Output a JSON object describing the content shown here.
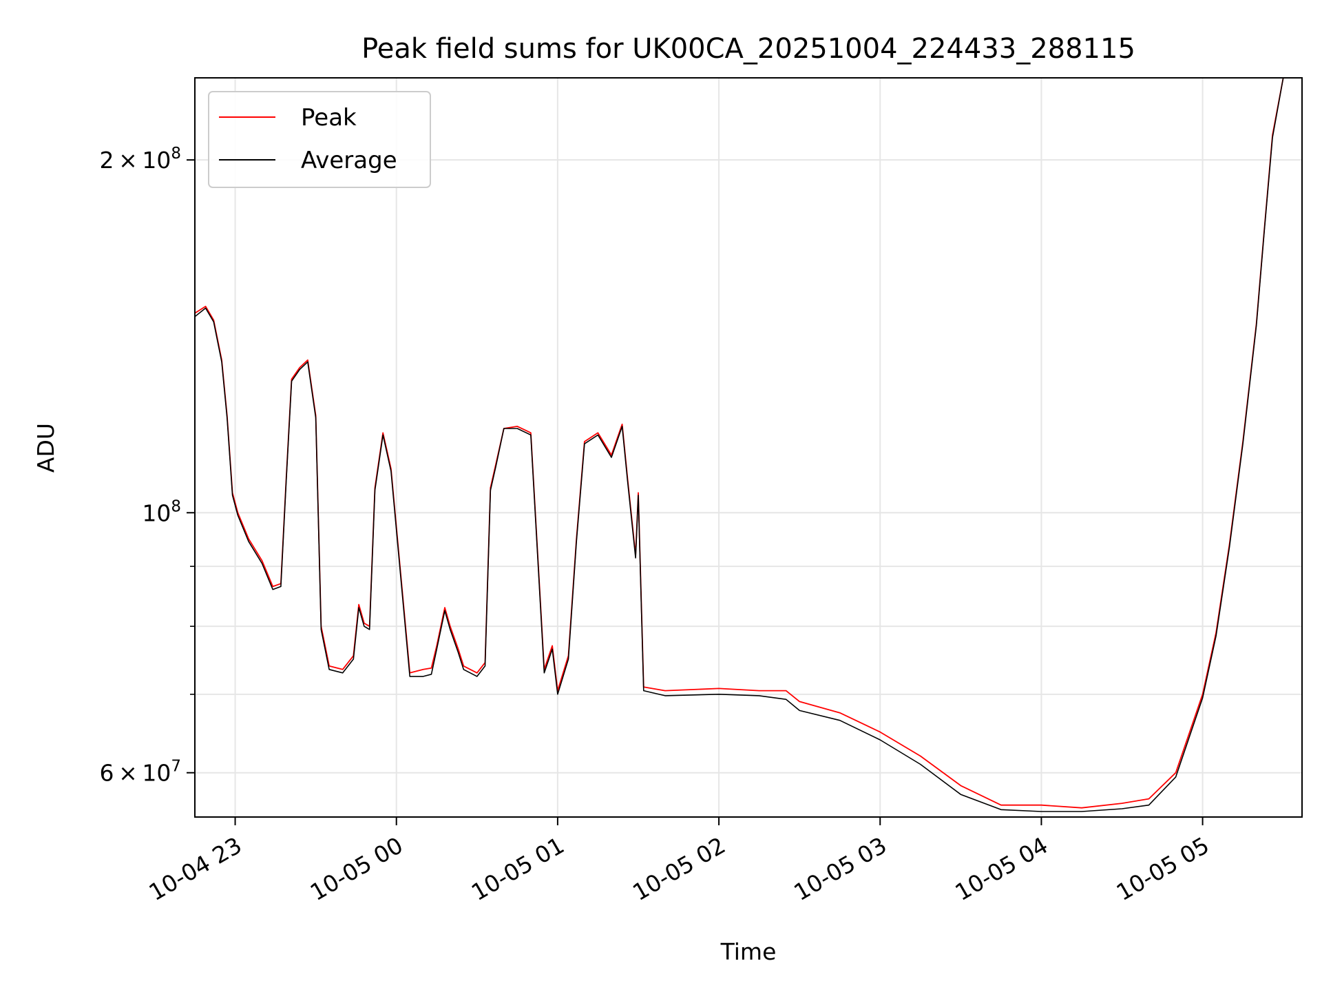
{
  "chart_data": {
    "type": "line",
    "title": "Peak field sums for UK00CA_20251004_224433_288115",
    "xlabel": "Time",
    "ylabel": "ADU",
    "x_type": "datetime",
    "xlim": [
      "2025-10-04 22:45",
      "2025-10-05 05:37"
    ],
    "ylim": [
      55000000,
      235000000
    ],
    "y_scale": "log",
    "grid": true,
    "legend_position": "upper-left",
    "x_ticks": [
      {
        "value": "2025-10-04 23:00",
        "label": "10-04 23"
      },
      {
        "value": "2025-10-05 00:00",
        "label": "10-05 00"
      },
      {
        "value": "2025-10-05 01:00",
        "label": "10-05 01"
      },
      {
        "value": "2025-10-05 02:00",
        "label": "10-05 02"
      },
      {
        "value": "2025-10-05 03:00",
        "label": "10-05 03"
      },
      {
        "value": "2025-10-05 04:00",
        "label": "10-05 04"
      },
      {
        "value": "2025-10-05 05:00",
        "label": "10-05 05"
      }
    ],
    "y_ticks": [
      {
        "value": 60000000,
        "label": "6×10⁷",
        "mant": "6",
        "exp": "7"
      },
      {
        "value": 100000000,
        "label": "10⁸",
        "mant": "",
        "exp": "8"
      },
      {
        "value": 200000000,
        "label": "2×10⁸",
        "mant": "2",
        "exp": "8"
      }
    ],
    "y_minor_ticks": [
      70000000,
      80000000,
      90000000
    ],
    "series": [
      {
        "name": "Peak",
        "color": "#ff0000",
        "x": [
          "2025-10-04 22:45",
          "2025-10-04 22:49",
          "2025-10-04 22:52",
          "2025-10-04 22:55",
          "2025-10-04 22:57",
          "2025-10-04 22:59",
          "2025-10-04 23:01",
          "2025-10-04 23:05",
          "2025-10-04 23:10",
          "2025-10-04 23:14",
          "2025-10-04 23:17",
          "2025-10-04 23:19",
          "2025-10-04 23:21",
          "2025-10-04 23:24",
          "2025-10-04 23:27",
          "2025-10-04 23:30",
          "2025-10-04 23:32",
          "2025-10-04 23:35",
          "2025-10-04 23:40",
          "2025-10-04 23:44",
          "2025-10-04 23:46",
          "2025-10-04 23:48",
          "2025-10-04 23:50",
          "2025-10-04 23:52",
          "2025-10-04 23:55",
          "2025-10-04 23:58",
          "2025-10-05 00:05",
          "2025-10-05 00:10",
          "2025-10-05 00:13",
          "2025-10-05 00:15",
          "2025-10-05 00:18",
          "2025-10-05 00:20",
          "2025-10-05 00:23",
          "2025-10-05 00:25",
          "2025-10-05 00:30",
          "2025-10-05 00:33",
          "2025-10-05 00:35",
          "2025-10-05 00:37",
          "2025-10-05 00:40",
          "2025-10-05 00:45",
          "2025-10-05 00:50",
          "2025-10-05 00:55",
          "2025-10-05 00:58",
          "2025-10-05 01:00",
          "2025-10-05 01:04",
          "2025-10-05 01:07",
          "2025-10-05 01:10",
          "2025-10-05 01:15",
          "2025-10-05 01:20",
          "2025-10-05 01:24",
          "2025-10-05 01:26",
          "2025-10-05 01:29",
          "2025-10-05 01:30",
          "2025-10-05 01:32",
          "2025-10-05 01:40",
          "2025-10-05 02:00",
          "2025-10-05 02:15",
          "2025-10-05 02:25",
          "2025-10-05 02:30",
          "2025-10-05 02:45",
          "2025-10-05 03:00",
          "2025-10-05 03:15",
          "2025-10-05 03:30",
          "2025-10-05 03:45",
          "2025-10-05 04:00",
          "2025-10-05 04:15",
          "2025-10-05 04:30",
          "2025-10-05 04:40",
          "2025-10-05 04:50",
          "2025-10-05 05:00",
          "2025-10-05 05:05",
          "2025-10-05 05:10",
          "2025-10-05 05:15",
          "2025-10-05 05:20",
          "2025-10-05 05:23",
          "2025-10-05 05:26",
          "2025-10-05 05:30",
          "2025-10-05 05:37"
        ],
        "values": [
          148000000,
          150000000,
          146000000,
          135000000,
          121000000,
          104000000,
          100000000,
          95000000,
          91000000,
          86500000,
          87000000,
          107000000,
          130000000,
          133000000,
          135000000,
          121000000,
          80000000,
          74000000,
          73500000,
          75500000,
          83500000,
          80500000,
          80000000,
          105000000,
          117000000,
          109000000,
          73000000,
          73500000,
          73700000,
          77000000,
          83000000,
          80000000,
          76500000,
          74000000,
          73000000,
          74500000,
          105000000,
          110000000,
          118000000,
          118500000,
          117000000,
          73500000,
          77000000,
          70500000,
          75500000,
          95000000,
          115000000,
          117000000,
          112000000,
          119000000,
          107000000,
          92000000,
          104000000,
          71000000,
          70500000,
          70800000,
          70500000,
          70500000,
          69000000,
          67500000,
          65000000,
          62000000,
          58500000,
          56300000,
          56300000,
          56000000,
          56500000,
          57000000,
          60000000,
          70000000,
          79000000,
          94000000,
          115000000,
          145000000,
          175000000,
          210000000,
          235000000,
          235000000
        ]
      },
      {
        "name": "Average",
        "color": "#000000",
        "x": [
          "2025-10-04 22:45",
          "2025-10-04 22:49",
          "2025-10-04 22:52",
          "2025-10-04 22:55",
          "2025-10-04 22:57",
          "2025-10-04 22:59",
          "2025-10-04 23:01",
          "2025-10-04 23:05",
          "2025-10-04 23:10",
          "2025-10-04 23:14",
          "2025-10-04 23:17",
          "2025-10-04 23:19",
          "2025-10-04 23:21",
          "2025-10-04 23:24",
          "2025-10-04 23:27",
          "2025-10-04 23:30",
          "2025-10-04 23:32",
          "2025-10-04 23:35",
          "2025-10-04 23:40",
          "2025-10-04 23:44",
          "2025-10-04 23:46",
          "2025-10-04 23:48",
          "2025-10-04 23:50",
          "2025-10-04 23:52",
          "2025-10-04 23:55",
          "2025-10-04 23:58",
          "2025-10-05 00:05",
          "2025-10-05 00:10",
          "2025-10-05 00:13",
          "2025-10-05 00:15",
          "2025-10-05 00:18",
          "2025-10-05 00:20",
          "2025-10-05 00:23",
          "2025-10-05 00:25",
          "2025-10-05 00:30",
          "2025-10-05 00:33",
          "2025-10-05 00:35",
          "2025-10-05 00:37",
          "2025-10-05 00:40",
          "2025-10-05 00:45",
          "2025-10-05 00:50",
          "2025-10-05 00:55",
          "2025-10-05 00:58",
          "2025-10-05 01:00",
          "2025-10-05 01:04",
          "2025-10-05 01:07",
          "2025-10-05 01:10",
          "2025-10-05 01:15",
          "2025-10-05 01:20",
          "2025-10-05 01:24",
          "2025-10-05 01:26",
          "2025-10-05 01:29",
          "2025-10-05 01:30",
          "2025-10-05 01:32",
          "2025-10-05 01:40",
          "2025-10-05 02:00",
          "2025-10-05 02:15",
          "2025-10-05 02:25",
          "2025-10-05 02:30",
          "2025-10-05 02:45",
          "2025-10-05 03:00",
          "2025-10-05 03:15",
          "2025-10-05 03:30",
          "2025-10-05 03:45",
          "2025-10-05 04:00",
          "2025-10-05 04:15",
          "2025-10-05 04:30",
          "2025-10-05 04:40",
          "2025-10-05 04:50",
          "2025-10-05 05:00",
          "2025-10-05 05:05",
          "2025-10-05 05:10",
          "2025-10-05 05:15",
          "2025-10-05 05:20",
          "2025-10-05 05:23",
          "2025-10-05 05:26",
          "2025-10-05 05:30",
          "2025-10-05 05:37"
        ],
        "values": [
          147000000,
          149500000,
          145500000,
          134500000,
          120500000,
          103500000,
          99500000,
          94500000,
          90500000,
          86000000,
          86500000,
          106500000,
          129500000,
          132500000,
          134500000,
          120500000,
          79500000,
          73500000,
          73000000,
          75000000,
          83000000,
          80000000,
          79500000,
          104500000,
          116500000,
          108500000,
          72500000,
          72500000,
          72800000,
          76500000,
          82500000,
          79500000,
          76000000,
          73500000,
          72500000,
          74000000,
          104500000,
          109500000,
          118000000,
          118000000,
          116500000,
          73000000,
          76500000,
          70000000,
          75000000,
          94500000,
          114500000,
          116500000,
          111500000,
          118500000,
          106500000,
          91500000,
          103500000,
          70500000,
          69800000,
          70000000,
          69800000,
          69300000,
          67800000,
          66500000,
          64000000,
          61000000,
          57500000,
          55800000,
          55600000,
          55600000,
          55900000,
          56300000,
          59500000,
          69500000,
          78500000,
          93500000,
          114500000,
          144500000,
          174500000,
          209000000,
          235000000,
          235000000
        ]
      }
    ]
  }
}
